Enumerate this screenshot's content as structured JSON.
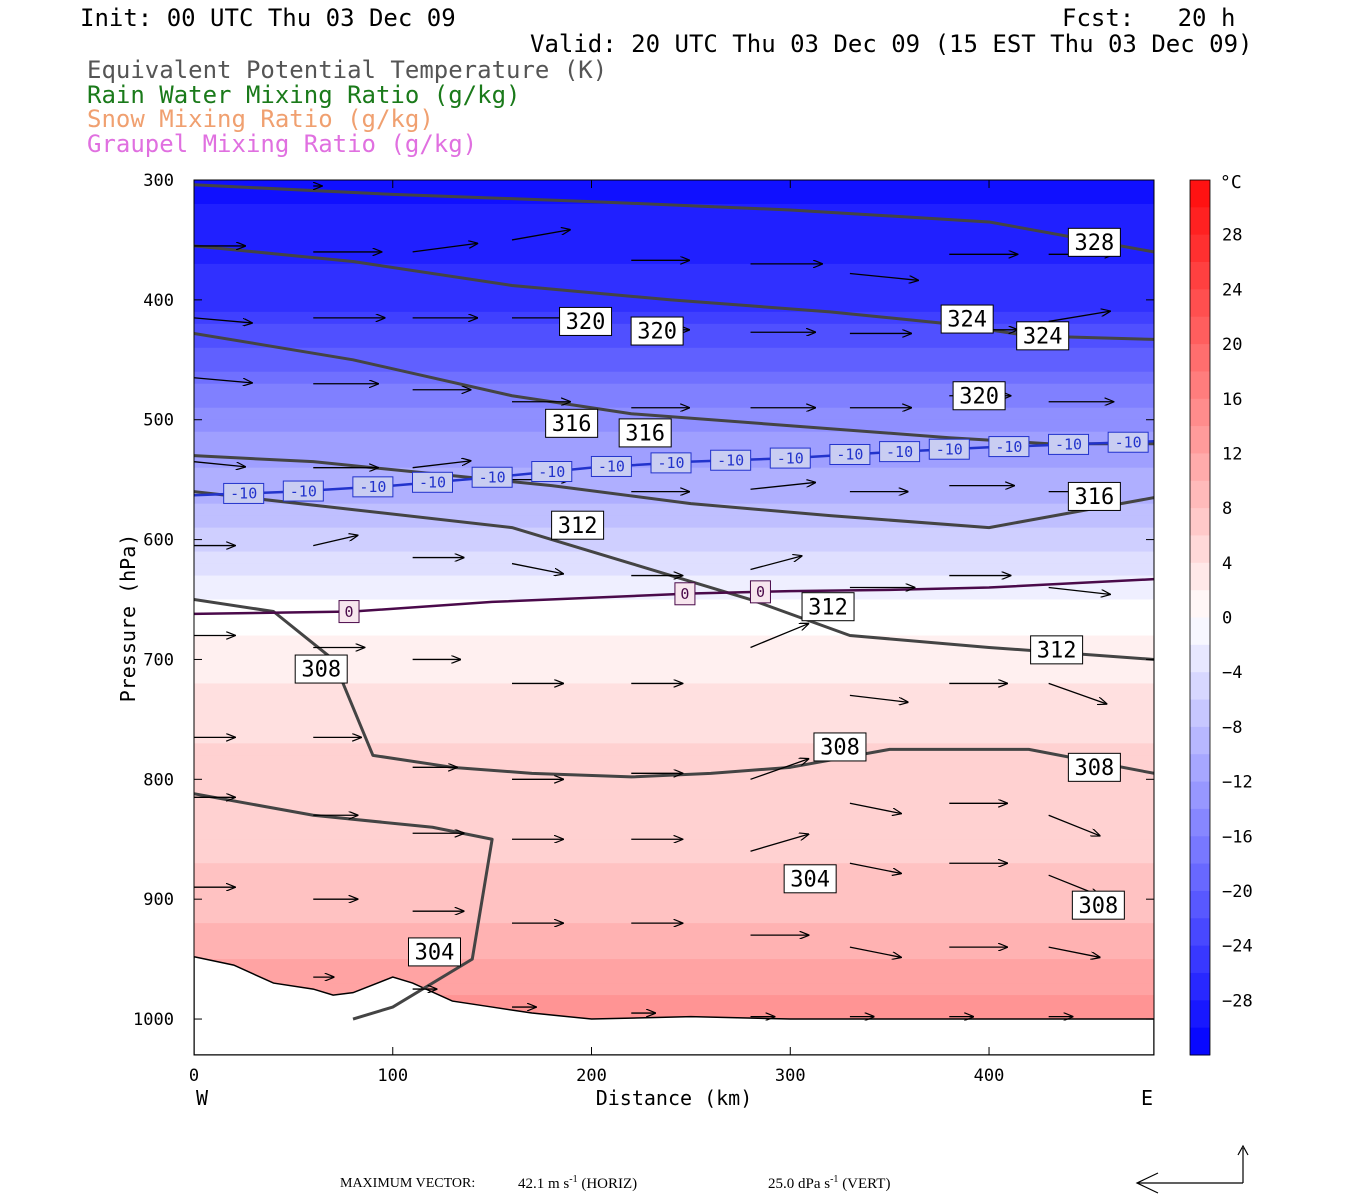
{
  "header": {
    "init": "Init: 00 UTC Thu 03 Dec 09",
    "fcst": "Fcst:   20 h",
    "valid": "Valid: 20 UTC Thu 03 Dec 09 (15 EST Thu 03 Dec 09)"
  },
  "legend_lines": [
    {
      "text": "Equivalent Potential Temperature (K)",
      "color": "#555555"
    },
    {
      "text": "Rain Water Mixing Ratio (g/kg)",
      "color": "#1a7a1a"
    },
    {
      "text": "Snow Mixing Ratio (g/kg)",
      "color": "#f0a070"
    },
    {
      "text": "Graupel Mixing Ratio (g/kg)",
      "color": "#e070e0"
    }
  ],
  "colors": {
    "theta_e_contour": "#444444",
    "isotherm_minus10": "#2233cc",
    "isotherm_0": "#4a0a4a",
    "vector": "#000000"
  },
  "chart_data": {
    "type": "heatmap",
    "description_field": "temperature",
    "xlabel": "Distance (km)",
    "ylabel": "Pressure (hPa)",
    "xlim": [
      0,
      483
    ],
    "ylim": [
      1030,
      300
    ],
    "x_ticks": [
      0,
      100,
      200,
      300,
      400
    ],
    "y_ticks": [
      300,
      400,
      500,
      600,
      700,
      800,
      900,
      1000
    ],
    "x_end_labels": {
      "left": "W",
      "right": "E"
    },
    "colorbar": {
      "unit": "°C",
      "range": [
        -32,
        32
      ],
      "step": 2,
      "tick_labels": [
        28,
        24,
        20,
        16,
        12,
        8,
        4,
        0,
        -4,
        -8,
        -12,
        -16,
        -20,
        -24,
        -28
      ]
    },
    "temperature_profile": [
      {
        "p": 300,
        "t": -30
      },
      {
        "p": 400,
        "t": -26
      },
      {
        "p": 450,
        "t": -20
      },
      {
        "p": 500,
        "t": -14
      },
      {
        "p": 560,
        "t": -10
      },
      {
        "p": 600,
        "t": -6
      },
      {
        "p": 640,
        "t": -2
      },
      {
        "p": 660,
        "t": 0
      },
      {
        "p": 700,
        "t": 2
      },
      {
        "p": 800,
        "t": 6
      },
      {
        "p": 850,
        "t": 6
      },
      {
        "p": 900,
        "t": 8
      },
      {
        "p": 950,
        "t": 11
      },
      {
        "p": 1000,
        "t": 14
      }
    ],
    "isotherm_minus10": {
      "label": "-10",
      "points": [
        [
          0,
          563
        ],
        [
          50,
          560
        ],
        [
          100,
          555
        ],
        [
          150,
          548
        ],
        [
          200,
          540
        ],
        [
          250,
          535
        ],
        [
          300,
          532
        ],
        [
          350,
          527
        ],
        [
          400,
          523
        ],
        [
          483,
          518
        ]
      ],
      "label_x": [
        25,
        55,
        90,
        120,
        150,
        180,
        210,
        240,
        270,
        300,
        330,
        355,
        380,
        410,
        440,
        470
      ]
    },
    "isotherm_0": {
      "label": "0",
      "points": [
        [
          0,
          662
        ],
        [
          80,
          660
        ],
        [
          150,
          652
        ],
        [
          250,
          645
        ],
        [
          300,
          643
        ],
        [
          350,
          642
        ],
        [
          400,
          640
        ],
        [
          483,
          633
        ]
      ],
      "label_x": [
        78,
        247,
        285
      ]
    },
    "theta_e_contours": [
      {
        "value": 328,
        "points": [
          [
            0,
            304
          ],
          [
            100,
            312
          ],
          [
            200,
            318
          ],
          [
            300,
            325
          ],
          [
            400,
            335
          ],
          [
            483,
            360
          ]
        ],
        "labels": [
          [
            453,
            352
          ]
        ]
      },
      {
        "value": 324,
        "points": [
          [
            0,
            355
          ],
          [
            80,
            368
          ],
          [
            160,
            388
          ],
          [
            240,
            400
          ],
          [
            320,
            410
          ],
          [
            380,
            420
          ],
          [
            420,
            430
          ],
          [
            483,
            433
          ]
        ],
        "labels": [
          [
            389,
            416
          ],
          [
            427,
            430
          ]
        ]
      },
      {
        "value": 320,
        "points": [
          [
            0,
            428
          ],
          [
            80,
            450
          ],
          [
            160,
            480
          ],
          [
            220,
            495
          ],
          [
            300,
            505
          ],
          [
            380,
            515
          ],
          [
            430,
            520
          ],
          [
            483,
            520
          ]
        ],
        "labels": [
          [
            197,
            418
          ],
          [
            233,
            426
          ],
          [
            395,
            480
          ]
        ]
      },
      {
        "value": 316,
        "points": [
          [
            0,
            530
          ],
          [
            60,
            535
          ],
          [
            120,
            545
          ],
          [
            180,
            555
          ],
          [
            250,
            570
          ],
          [
            320,
            580
          ],
          [
            400,
            590
          ],
          [
            483,
            565
          ]
        ],
        "labels": [
          [
            190,
            503
          ],
          [
            227,
            511
          ],
          [
            453,
            564
          ]
        ]
      },
      {
        "value": 312,
        "points": [
          [
            0,
            560
          ],
          [
            80,
            575
          ],
          [
            160,
            590
          ],
          [
            220,
            620
          ],
          [
            280,
            650
          ],
          [
            330,
            680
          ],
          [
            400,
            690
          ],
          [
            483,
            700
          ]
        ],
        "labels": [
          [
            193,
            588
          ],
          [
            319,
            656
          ],
          [
            434,
            692
          ]
        ]
      },
      {
        "value": 308,
        "points": [
          [
            0,
            650
          ],
          [
            40,
            660
          ],
          [
            70,
            700
          ],
          [
            90,
            780
          ],
          [
            130,
            790
          ],
          [
            170,
            795
          ],
          [
            220,
            798
          ],
          [
            260,
            795
          ],
          [
            300,
            790
          ],
          [
            350,
            775
          ],
          [
            420,
            775
          ],
          [
            483,
            795
          ]
        ],
        "labels": [
          [
            64,
            708
          ],
          [
            325,
            773
          ],
          [
            453,
            790
          ],
          [
            455,
            905
          ]
        ]
      },
      {
        "value": 304,
        "points": [
          [
            0,
            812
          ],
          [
            60,
            830
          ],
          [
            120,
            840
          ],
          [
            150,
            850
          ],
          [
            140,
            950
          ],
          [
            100,
            990
          ],
          [
            80,
            1000
          ]
        ],
        "labels": [
          [
            121,
            944
          ],
          [
            310,
            883
          ]
        ]
      }
    ],
    "wind_vectors": [
      {
        "x": 60,
        "p": 305,
        "u": 5,
        "w": 0
      },
      {
        "x": 0,
        "p": 355,
        "u": 30,
        "w": 0
      },
      {
        "x": 60,
        "p": 360,
        "u": 40,
        "w": 0
      },
      {
        "x": 110,
        "p": 360,
        "u": 38,
        "w": 5
      },
      {
        "x": 160,
        "p": 350,
        "u": 34,
        "w": 6
      },
      {
        "x": 220,
        "p": 367,
        "u": 34,
        "w": 0
      },
      {
        "x": 280,
        "p": 370,
        "u": 42,
        "w": 0
      },
      {
        "x": 330,
        "p": 378,
        "u": 40,
        "w": -4
      },
      {
        "x": 380,
        "p": 362,
        "u": 40,
        "w": 0
      },
      {
        "x": 430,
        "p": 362,
        "u": 38,
        "w": 0
      },
      {
        "x": 0,
        "p": 415,
        "u": 34,
        "w": -3
      },
      {
        "x": 60,
        "p": 415,
        "u": 42,
        "w": 0
      },
      {
        "x": 110,
        "p": 415,
        "u": 38,
        "w": 0
      },
      {
        "x": 160,
        "p": 415,
        "u": 34,
        "w": 0
      },
      {
        "x": 220,
        "p": 425,
        "u": 34,
        "w": 0
      },
      {
        "x": 280,
        "p": 427,
        "u": 38,
        "w": 0
      },
      {
        "x": 330,
        "p": 428,
        "u": 36,
        "w": 0
      },
      {
        "x": 380,
        "p": 425,
        "u": 40,
        "w": 0
      },
      {
        "x": 430,
        "p": 418,
        "u": 36,
        "w": 6
      },
      {
        "x": 0,
        "p": 465,
        "u": 34,
        "w": -3
      },
      {
        "x": 60,
        "p": 470,
        "u": 38,
        "w": 0
      },
      {
        "x": 110,
        "p": 475,
        "u": 34,
        "w": 0
      },
      {
        "x": 160,
        "p": 485,
        "u": 34,
        "w": 0
      },
      {
        "x": 220,
        "p": 490,
        "u": 34,
        "w": 0
      },
      {
        "x": 280,
        "p": 490,
        "u": 38,
        "w": 0
      },
      {
        "x": 330,
        "p": 490,
        "u": 36,
        "w": 0
      },
      {
        "x": 380,
        "p": 480,
        "u": 36,
        "w": 0
      },
      {
        "x": 430,
        "p": 485,
        "u": 38,
        "w": 0
      },
      {
        "x": 0,
        "p": 535,
        "u": 30,
        "w": -3
      },
      {
        "x": 60,
        "p": 540,
        "u": 38,
        "w": 0
      },
      {
        "x": 110,
        "p": 540,
        "u": 34,
        "w": 4
      },
      {
        "x": 160,
        "p": 550,
        "u": 34,
        "w": 0
      },
      {
        "x": 220,
        "p": 560,
        "u": 34,
        "w": 0
      },
      {
        "x": 280,
        "p": 558,
        "u": 38,
        "w": 4
      },
      {
        "x": 330,
        "p": 560,
        "u": 34,
        "w": 0
      },
      {
        "x": 380,
        "p": 555,
        "u": 38,
        "w": 0
      },
      {
        "x": 430,
        "p": 560,
        "u": 34,
        "w": 0
      },
      {
        "x": 0,
        "p": 605,
        "u": 24,
        "w": 0
      },
      {
        "x": 60,
        "p": 605,
        "u": 26,
        "w": 6
      },
      {
        "x": 110,
        "p": 615,
        "u": 30,
        "w": 0
      },
      {
        "x": 160,
        "p": 620,
        "u": 30,
        "w": -6
      },
      {
        "x": 220,
        "p": 630,
        "u": 30,
        "w": 0
      },
      {
        "x": 280,
        "p": 625,
        "u": 30,
        "w": 8
      },
      {
        "x": 330,
        "p": 640,
        "u": 38,
        "w": 0
      },
      {
        "x": 380,
        "p": 630,
        "u": 36,
        "w": 0
      },
      {
        "x": 430,
        "p": 640,
        "u": 36,
        "w": -4
      },
      {
        "x": 0,
        "p": 680,
        "u": 24,
        "w": 0
      },
      {
        "x": 60,
        "p": 690,
        "u": 30,
        "w": 0
      },
      {
        "x": 110,
        "p": 700,
        "u": 28,
        "w": 0
      },
      {
        "x": 160,
        "p": 720,
        "u": 30,
        "w": 0
      },
      {
        "x": 220,
        "p": 720,
        "u": 30,
        "w": 0
      },
      {
        "x": 280,
        "p": 690,
        "u": 34,
        "w": 14
      },
      {
        "x": 330,
        "p": 730,
        "u": 34,
        "w": -4
      },
      {
        "x": 380,
        "p": 720,
        "u": 34,
        "w": 0
      },
      {
        "x": 430,
        "p": 720,
        "u": 34,
        "w": -12
      },
      {
        "x": 0,
        "p": 765,
        "u": 24,
        "w": 0
      },
      {
        "x": 60,
        "p": 765,
        "u": 28,
        "w": 0
      },
      {
        "x": 110,
        "p": 790,
        "u": 26,
        "w": 0
      },
      {
        "x": 160,
        "p": 800,
        "u": 30,
        "w": 0
      },
      {
        "x": 220,
        "p": 795,
        "u": 30,
        "w": 0
      },
      {
        "x": 280,
        "p": 800,
        "u": 34,
        "w": 12
      },
      {
        "x": 330,
        "p": 820,
        "u": 30,
        "w": -6
      },
      {
        "x": 380,
        "p": 820,
        "u": 34,
        "w": 0
      },
      {
        "x": 430,
        "p": 830,
        "u": 30,
        "w": -12
      },
      {
        "x": 0,
        "p": 815,
        "u": 24,
        "w": 0
      },
      {
        "x": 60,
        "p": 830,
        "u": 26,
        "w": 0
      },
      {
        "x": 110,
        "p": 845,
        "u": 30,
        "w": 0
      },
      {
        "x": 160,
        "p": 850,
        "u": 30,
        "w": 0
      },
      {
        "x": 220,
        "p": 850,
        "u": 30,
        "w": 0
      },
      {
        "x": 280,
        "p": 860,
        "u": 34,
        "w": 10
      },
      {
        "x": 330,
        "p": 870,
        "u": 30,
        "w": -6
      },
      {
        "x": 380,
        "p": 870,
        "u": 34,
        "w": 0
      },
      {
        "x": 430,
        "p": 880,
        "u": 30,
        "w": -12
      },
      {
        "x": 0,
        "p": 890,
        "u": 24,
        "w": 0
      },
      {
        "x": 60,
        "p": 900,
        "u": 26,
        "w": 0
      },
      {
        "x": 110,
        "p": 910,
        "u": 30,
        "w": 0
      },
      {
        "x": 160,
        "p": 920,
        "u": 30,
        "w": 0
      },
      {
        "x": 220,
        "p": 920,
        "u": 30,
        "w": 0
      },
      {
        "x": 280,
        "p": 930,
        "u": 34,
        "w": 0
      },
      {
        "x": 330,
        "p": 940,
        "u": 30,
        "w": -6
      },
      {
        "x": 380,
        "p": 940,
        "u": 34,
        "w": 0
      },
      {
        "x": 430,
        "p": 940,
        "u": 30,
        "w": -6
      },
      {
        "x": 60,
        "p": 965,
        "u": 12,
        "w": 0
      },
      {
        "x": 110,
        "p": 975,
        "u": 14,
        "w": 0
      },
      {
        "x": 160,
        "p": 990,
        "u": 14,
        "w": 0
      },
      {
        "x": 220,
        "p": 995,
        "u": 14,
        "w": 0
      },
      {
        "x": 280,
        "p": 998,
        "u": 14,
        "w": 0
      },
      {
        "x": 330,
        "p": 998,
        "u": 14,
        "w": 0
      },
      {
        "x": 380,
        "p": 998,
        "u": 14,
        "w": 0
      },
      {
        "x": 430,
        "p": 998,
        "u": 14,
        "w": 0
      }
    ],
    "terrain": [
      [
        0,
        948
      ],
      [
        20,
        955
      ],
      [
        40,
        970
      ],
      [
        60,
        975
      ],
      [
        70,
        980
      ],
      [
        80,
        978
      ],
      [
        100,
        965
      ],
      [
        110,
        970
      ],
      [
        130,
        985
      ],
      [
        150,
        990
      ],
      [
        170,
        995
      ],
      [
        200,
        1000
      ],
      [
        250,
        998
      ],
      [
        300,
        1000
      ],
      [
        350,
        1000
      ],
      [
        400,
        1000
      ],
      [
        483,
        1000
      ]
    ]
  },
  "footer": {
    "max_vector_label": "MAXIMUM VECTOR:",
    "horiz_value": "42.1 m s",
    "horiz_sup": "-1",
    "horiz_tail": " (HORIZ)",
    "vert_value": "25.0 dPa s",
    "vert_sup": "-1",
    "vert_tail": " (VERT)"
  }
}
